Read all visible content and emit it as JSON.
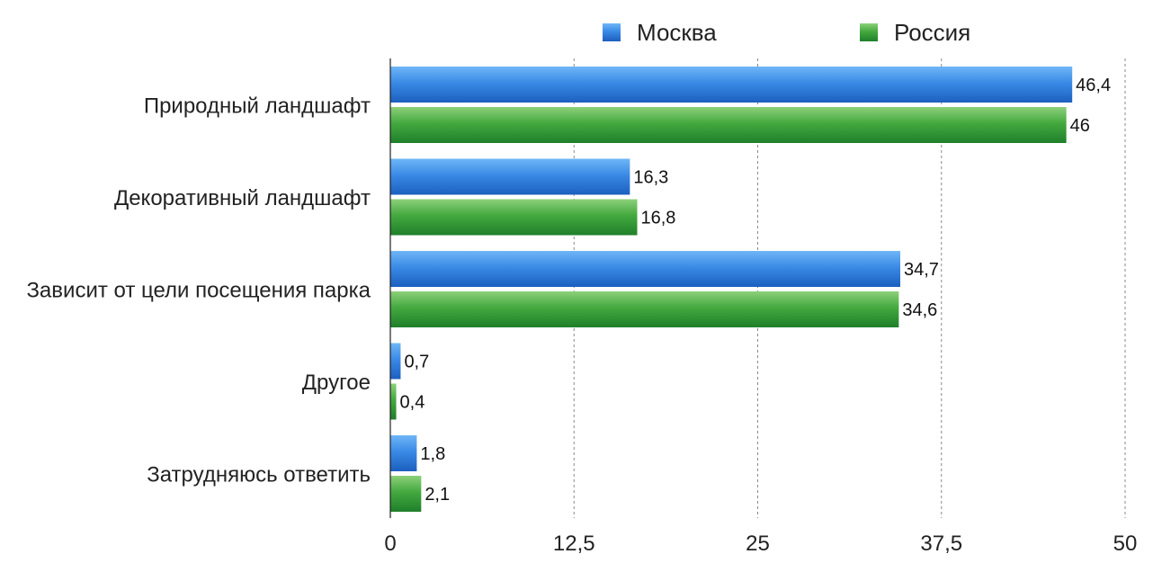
{
  "chart_data": {
    "type": "bar",
    "orientation": "horizontal",
    "categories": [
      "Природный ландшафт",
      "Декоративный ландшафт",
      "Зависит от цели посещения парка",
      "Другое",
      "Затрудняюсь ответить"
    ],
    "series": [
      {
        "name": "Москва",
        "color": "#2f7fdc",
        "values": [
          46.4,
          16.3,
          34.7,
          0.7,
          1.8
        ],
        "labels": [
          "46,4",
          "16,3",
          "34,7",
          "0,7",
          "1,8"
        ]
      },
      {
        "name": "Россия",
        "color": "#3ea83a",
        "values": [
          46,
          16.8,
          34.6,
          0.4,
          2.1
        ],
        "labels": [
          "46",
          "16,8",
          "34,6",
          "0,4",
          "2,1"
        ]
      }
    ],
    "xlim": [
      0,
      50
    ],
    "ticks": [
      0,
      12.5,
      25,
      37.5,
      50
    ],
    "tick_labels": [
      "0",
      "12,5",
      "25",
      "37,5",
      "50"
    ],
    "grid": true,
    "legend_position": "top"
  }
}
